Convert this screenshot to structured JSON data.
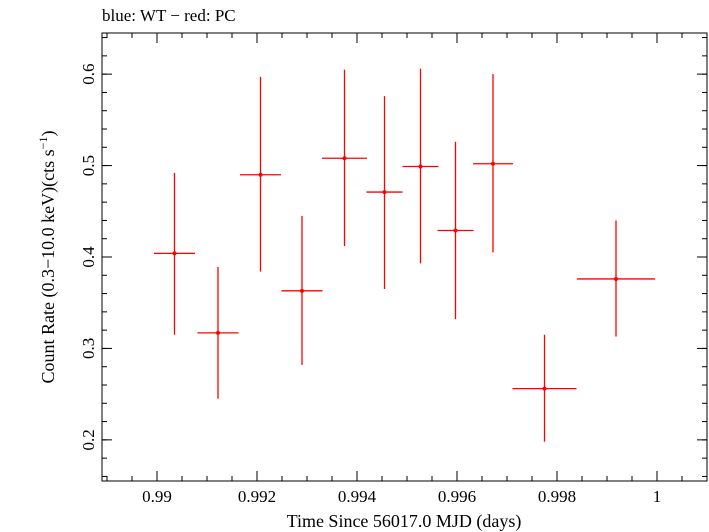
{
  "chart_data": {
    "type": "scatter",
    "title": "blue: WT − red: PC",
    "xlabel": "Time Since 56017.0 MJD (days)",
    "ylabel_main": "Count Rate (0.3−10.0 keV)(cts s",
    "ylabel_sup": "−1",
    "ylabel_close": ")",
    "xlim": [
      0.9889,
      1.001
    ],
    "ylim": [
      0.155,
      0.645
    ],
    "x_ticks": [
      0.99,
      0.992,
      0.994,
      0.996,
      0.998,
      1
    ],
    "x_tick_labels": [
      "0.99",
      "0.992",
      "0.994",
      "0.996",
      "0.998",
      "1"
    ],
    "y_ticks": [
      0.2,
      0.3,
      0.4,
      0.5,
      0.6
    ],
    "y_tick_labels": [
      "0.2",
      "0.3",
      "0.4",
      "0.5",
      "0.6"
    ],
    "grid": false,
    "series": [
      {
        "color": "#ff0000",
        "points": [
          {
            "x": 0.99035,
            "xerr": 0.00041,
            "y": 0.404,
            "yerr_lo": 0.089,
            "yerr_hi": 0.088
          },
          {
            "x": 0.99122,
            "xerr": 0.00041,
            "y": 0.317,
            "yerr_lo": 0.072,
            "yerr_hi": 0.072
          },
          {
            "x": 0.99207,
            "xerr": 0.00041,
            "y": 0.49,
            "yerr_lo": 0.106,
            "yerr_hi": 0.107
          },
          {
            "x": 0.9929,
            "xerr": 0.00041,
            "y": 0.363,
            "yerr_lo": 0.081,
            "yerr_hi": 0.082
          },
          {
            "x": 0.99375,
            "xerr": 0.00045,
            "y": 0.508,
            "yerr_lo": 0.096,
            "yerr_hi": 0.097
          },
          {
            "x": 0.99455,
            "xerr": 0.00036,
            "y": 0.471,
            "yerr_lo": 0.106,
            "yerr_hi": 0.105
          },
          {
            "x": 0.99527,
            "xerr": 0.00036,
            "y": 0.499,
            "yerr_lo": 0.106,
            "yerr_hi": 0.107
          },
          {
            "x": 0.99597,
            "xerr": 0.00036,
            "y": 0.429,
            "yerr_lo": 0.097,
            "yerr_hi": 0.097
          },
          {
            "x": 0.99672,
            "xerr": 0.0004,
            "y": 0.502,
            "yerr_lo": 0.097,
            "yerr_hi": 0.098
          },
          {
            "x": 0.99775,
            "xerr": 0.00064,
            "y": 0.256,
            "yerr_lo": 0.058,
            "yerr_hi": 0.059
          },
          {
            "x": 0.99918,
            "xerr": 0.00078,
            "y": 0.376,
            "yerr_lo": 0.063,
            "yerr_hi": 0.064
          }
        ]
      }
    ]
  }
}
